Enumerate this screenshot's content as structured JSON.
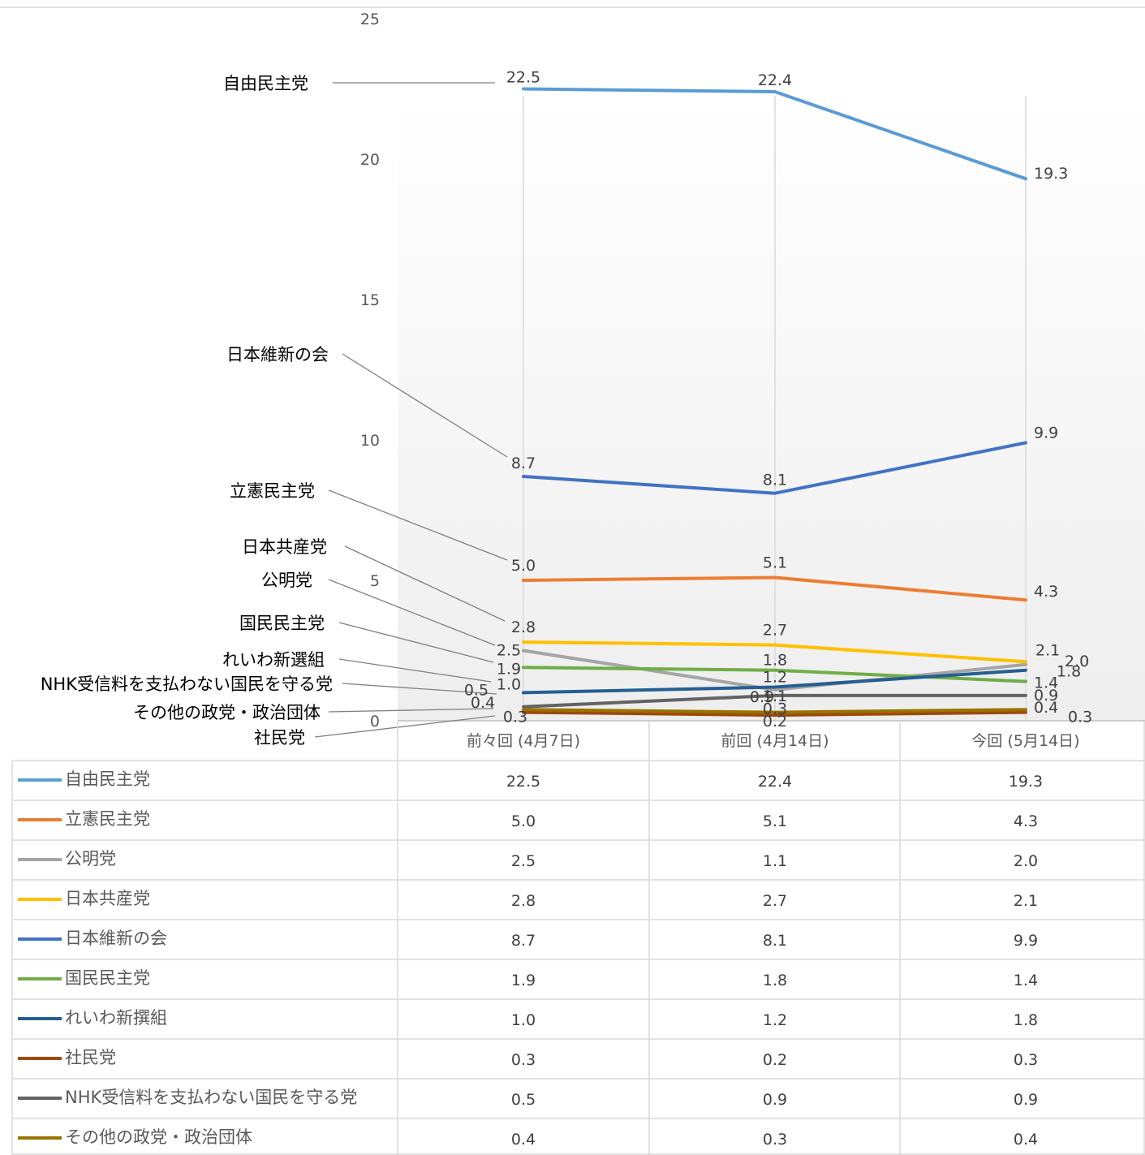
{
  "chart_data": {
    "type": "line",
    "title": "",
    "xlabel": "",
    "ylabel": "",
    "ylim": [
      0,
      25
    ],
    "yticks": [
      "0",
      "5",
      "10",
      "15",
      "20",
      "25"
    ],
    "categories": [
      "前々回 (4月7日)",
      "前回 (4月14日)",
      "今回 (5月14日)"
    ],
    "grid": "vertical",
    "legend": "data-table-below",
    "series": [
      {
        "name": "自由民主党",
        "color": "#5B9BD5",
        "values": [
          22.5,
          22.4,
          19.3
        ],
        "labels": [
          "22.5",
          "22.4",
          "19.3"
        ]
      },
      {
        "name": "立憲民主党",
        "color": "#ED7D31",
        "values": [
          5.0,
          5.1,
          4.3
        ],
        "labels": [
          "5.0",
          "5.1",
          "4.3"
        ]
      },
      {
        "name": "公明党",
        "color": "#A5A5A5",
        "values": [
          2.5,
          1.1,
          2.0
        ],
        "labels": [
          "2.5",
          "1.1",
          "2.0"
        ]
      },
      {
        "name": "日本共産党",
        "color": "#FFC000",
        "values": [
          2.8,
          2.7,
          2.1
        ],
        "labels": [
          "2.8",
          "2.7",
          "2.1"
        ]
      },
      {
        "name": "日本維新の会",
        "color": "#4472C4",
        "values": [
          8.7,
          8.1,
          9.9
        ],
        "labels": [
          "8.7",
          "8.1",
          "9.9"
        ]
      },
      {
        "name": "国民民主党",
        "color": "#70AD47",
        "values": [
          1.9,
          1.8,
          1.4
        ],
        "labels": [
          "1.9",
          "1.8",
          "1.4"
        ]
      },
      {
        "name": "れいわ新撰組",
        "color": "#255E91",
        "values": [
          1.0,
          1.2,
          1.8
        ],
        "labels": [
          "1.0",
          "1.2",
          "1.8"
        ]
      },
      {
        "name": "社民党",
        "color": "#9E480E",
        "values": [
          0.3,
          0.2,
          0.3
        ],
        "labels": [
          "0.3",
          "0.2",
          "0.3"
        ]
      },
      {
        "name": "NHK受信料を支払わない国民を守る党",
        "color": "#636363",
        "values": [
          0.5,
          0.9,
          0.9
        ],
        "labels": [
          "0.5",
          "0.9",
          "0.9"
        ]
      },
      {
        "name": "その他の政党・政治団体",
        "color": "#997300",
        "values": [
          0.4,
          0.3,
          0.4
        ],
        "labels": [
          "0.4",
          "0.3",
          "0.4"
        ]
      }
    ],
    "left_callouts": [
      "自由民主党",
      "日本維新の会",
      "立憲民主党",
      "日本共産党",
      "公明党",
      "国民民主党",
      "れいわ新選組",
      "NHK受信料を支払わない国民を守る党",
      "その他の政党・政治団体",
      "社民党"
    ]
  }
}
